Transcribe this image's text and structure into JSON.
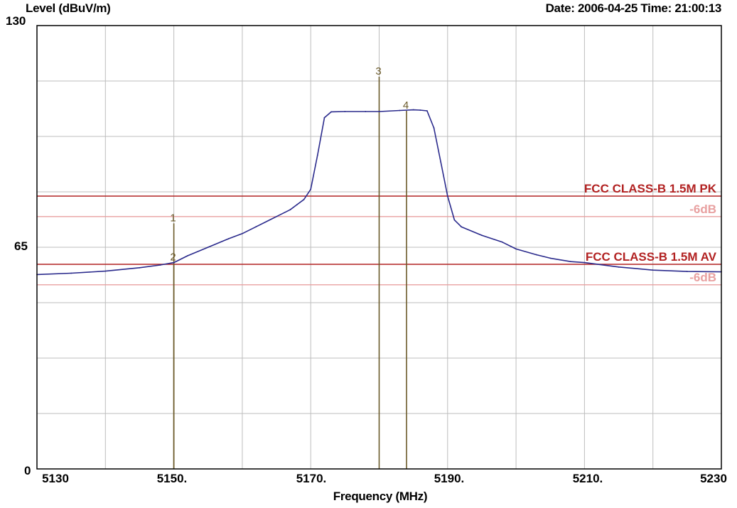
{
  "header": {
    "ylabel": "Level (dBuV/m)",
    "datetime": "Date: 2006-04-25  Time: 21:00:13"
  },
  "chart_data": {
    "type": "line",
    "xlabel": "Frequency (MHz)",
    "ylabel": "Level (dBuV/m)",
    "xlim": [
      5130,
      5230
    ],
    "ylim": [
      0,
      130
    ],
    "grid": true,
    "x_tick_labels": [
      {
        "value": 5130,
        "text": "5130"
      },
      {
        "value": 5150,
        "text": "5150."
      },
      {
        "value": 5170,
        "text": "5170."
      },
      {
        "value": 5190,
        "text": "5190."
      },
      {
        "value": 5210,
        "text": "5210."
      },
      {
        "value": 5230,
        "text": "5230"
      }
    ],
    "y_tick_labels": [
      {
        "value": 130,
        "text": "130"
      },
      {
        "value": 65,
        "text": "65"
      },
      {
        "value": 0,
        "text": "0"
      }
    ],
    "series": [
      {
        "color": "#2a2a8c",
        "x": [
          5130,
          5135,
          5140,
          5145,
          5148,
          5150,
          5152,
          5155,
          5158,
          5160,
          5162,
          5165,
          5167,
          5168,
          5169,
          5170,
          5171,
          5172,
          5173,
          5175,
          5178,
          5180,
          5183,
          5185,
          5186,
          5187,
          5188,
          5189,
          5190,
          5191,
          5192,
          5195,
          5198,
          5200,
          5203,
          5205,
          5208,
          5210,
          5215,
          5220,
          5225,
          5230
        ],
        "y": [
          57,
          57.4,
          58,
          59,
          59.8,
          60.5,
          62.5,
          65,
          67.5,
          69,
          71,
          74,
          76,
          77.5,
          79,
          82,
          92,
          103,
          104.7,
          104.8,
          104.8,
          104.8,
          105.1,
          105.3,
          105.2,
          105,
          100,
          90,
          80,
          73,
          71,
          68.5,
          66.5,
          64.5,
          62.8,
          61.8,
          60.8,
          60.5,
          59.2,
          58.3,
          57.9,
          57.8
        ]
      }
    ],
    "limit_lines": [
      {
        "label": "FCC CLASS-B 1.5M PK",
        "value": 80,
        "color": "#b22222"
      },
      {
        "label": "-6dB",
        "value": 74,
        "color": "#e8a0a0"
      },
      {
        "label": "FCC CLASS-B 1.5M AV",
        "value": 60,
        "color": "#b22222"
      },
      {
        "label": "-6dB",
        "value": 54,
        "color": "#e8a0a0"
      }
    ],
    "markers": [
      {
        "label": "1",
        "x": 5150,
        "y": 72
      },
      {
        "label": "2",
        "x": 5150,
        "y": 60.5
      },
      {
        "label": "3",
        "x": 5180,
        "y": 115
      },
      {
        "label": "4",
        "x": 5184,
        "y": 105
      }
    ],
    "marker_color": "#6b5a2a"
  }
}
